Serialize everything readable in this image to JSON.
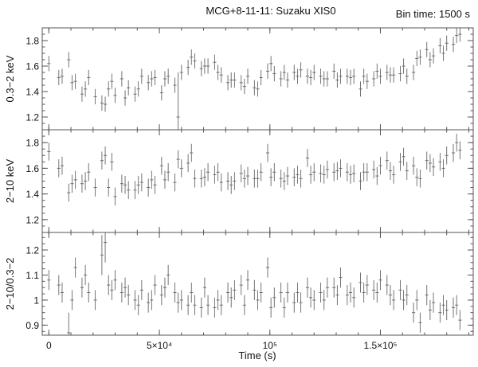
{
  "chart_data": {
    "type": "scatter",
    "title": "MCG+8-11-11: Suzaku XIS0",
    "annotation": "Bin time: 1500 s",
    "xlabel": "Time (s)",
    "xlim": [
      -3000,
      192000
    ],
    "x_ticks": [
      {
        "value": 0,
        "label": "0"
      },
      {
        "value": 50000,
        "label": "5×10⁴"
      },
      {
        "value": 100000,
        "label": "10⁵"
      },
      {
        "value": 150000,
        "label": "1.5×10⁵"
      }
    ],
    "panels": [
      {
        "ylabel": "0.3−2 keV",
        "ylim": [
          1.1,
          1.9
        ],
        "y_ticks": [
          {
            "value": 1.2,
            "label": "1.2"
          },
          {
            "value": 1.4,
            "label": "1.4"
          },
          {
            "value": 1.6,
            "label": "1.6"
          },
          {
            "value": 1.8,
            "label": "1.8"
          }
        ],
        "x": [
          0,
          4500,
          6000,
          9000,
          10500,
          12000,
          15000,
          16500,
          18000,
          21000,
          24000,
          25500,
          27000,
          28500,
          30000,
          33000,
          34500,
          36000,
          39000,
          40500,
          42000,
          45000,
          46500,
          48000,
          51000,
          52500,
          54000,
          57000,
          58500,
          60000,
          63000,
          64500,
          66000,
          69000,
          70500,
          72000,
          75000,
          76500,
          78000,
          81000,
          82500,
          84000,
          87000,
          88500,
          90000,
          93000,
          94500,
          96000,
          99000,
          100500,
          102000,
          105000,
          106500,
          108000,
          111000,
          112500,
          114000,
          117000,
          118500,
          120000,
          123000,
          124500,
          126000,
          129000,
          130500,
          132000,
          135000,
          136500,
          138000,
          141000,
          142500,
          144000,
          147000,
          148500,
          150000,
          153000,
          154500,
          156000,
          159000,
          160500,
          162000,
          165000,
          166500,
          168000,
          171000,
          172500,
          174000,
          177000,
          178500,
          180000,
          183000,
          184500,
          186000
        ],
        "y": [
          1.62,
          1.51,
          1.52,
          1.65,
          1.47,
          1.48,
          1.38,
          1.42,
          1.51,
          1.36,
          1.31,
          1.3,
          1.42,
          1.48,
          1.37,
          1.5,
          1.35,
          1.43,
          1.38,
          1.42,
          1.52,
          1.47,
          1.5,
          1.51,
          1.39,
          1.5,
          1.52,
          1.45,
          1.2,
          1.55,
          1.59,
          1.67,
          1.64,
          1.58,
          1.6,
          1.6,
          1.63,
          1.55,
          1.53,
          1.47,
          1.49,
          1.49,
          1.47,
          1.44,
          1.52,
          1.43,
          1.42,
          1.51,
          1.56,
          1.62,
          1.54,
          1.5,
          1.55,
          1.49,
          1.55,
          1.52,
          1.57,
          1.52,
          1.51,
          1.55,
          1.52,
          1.5,
          1.5,
          1.56,
          1.49,
          1.52,
          1.52,
          1.51,
          1.52,
          1.42,
          1.52,
          1.48,
          1.5,
          1.56,
          1.52,
          1.55,
          1.53,
          1.53,
          1.54,
          1.6,
          1.52,
          1.55,
          1.66,
          1.67,
          1.73,
          1.65,
          1.68,
          1.76,
          1.7,
          1.78,
          1.77,
          1.84,
          1.85
        ],
        "yerr": 0.06
      },
      {
        "ylabel": "2−10 keV",
        "ylim": [
          1.1,
          1.9
        ],
        "y_ticks": [
          {
            "value": 1.2,
            "label": "1.2"
          },
          {
            "value": 1.4,
            "label": "1.4"
          },
          {
            "value": 1.6,
            "label": "1.6"
          },
          {
            "value": 1.8,
            "label": "1.8"
          }
        ],
        "x": [
          0,
          4500,
          6000,
          9000,
          10500,
          12000,
          15000,
          16500,
          18000,
          21000,
          24000,
          25500,
          27000,
          28500,
          30000,
          33000,
          34500,
          36000,
          39000,
          40500,
          42000,
          45000,
          46500,
          48000,
          51000,
          52500,
          54000,
          57000,
          58500,
          60000,
          63000,
          64500,
          66000,
          69000,
          70500,
          72000,
          75000,
          76500,
          78000,
          81000,
          82500,
          84000,
          87000,
          88500,
          90000,
          93000,
          94500,
          96000,
          99000,
          100500,
          102000,
          105000,
          106500,
          108000,
          111000,
          112500,
          114000,
          117000,
          118500,
          120000,
          123000,
          124500,
          126000,
          129000,
          130500,
          132000,
          135000,
          136500,
          138000,
          141000,
          142500,
          144000,
          147000,
          148500,
          150000,
          153000,
          154500,
          156000,
          159000,
          160500,
          162000,
          165000,
          166500,
          168000,
          171000,
          172500,
          174000,
          177000,
          178500,
          180000,
          183000,
          184500,
          186000
        ],
        "y": [
          1.73,
          1.6,
          1.62,
          1.41,
          1.48,
          1.51,
          1.48,
          1.5,
          1.57,
          1.45,
          1.66,
          1.7,
          1.45,
          1.65,
          1.38,
          1.48,
          1.47,
          1.43,
          1.43,
          1.47,
          1.49,
          1.45,
          1.51,
          1.47,
          1.62,
          1.51,
          1.57,
          1.49,
          1.67,
          1.6,
          1.64,
          1.72,
          1.52,
          1.52,
          1.53,
          1.57,
          1.55,
          1.57,
          1.49,
          1.5,
          1.47,
          1.5,
          1.56,
          1.52,
          1.54,
          1.52,
          1.52,
          1.57,
          1.72,
          1.53,
          1.57,
          1.52,
          1.5,
          1.54,
          1.53,
          1.55,
          1.52,
          1.68,
          1.55,
          1.57,
          1.56,
          1.55,
          1.59,
          1.57,
          1.58,
          1.6,
          1.57,
          1.55,
          1.56,
          1.5,
          1.57,
          1.57,
          1.59,
          1.54,
          1.62,
          1.66,
          1.58,
          1.55,
          1.65,
          1.69,
          1.58,
          1.62,
          1.53,
          1.52,
          1.66,
          1.64,
          1.61,
          1.65,
          1.6,
          1.7,
          1.72,
          1.8,
          1.74
        ],
        "yerr": 0.07
      },
      {
        "ylabel": "2−10/0.3−2",
        "ylim": [
          0.86,
          1.27
        ],
        "y_ticks": [
          {
            "value": 0.9,
            "label": "0.9"
          },
          {
            "value": 1.0,
            "label": "1"
          },
          {
            "value": 1.1,
            "label": "1.1"
          },
          {
            "value": 1.2,
            "label": "1.2"
          }
        ],
        "x": [
          0,
          4500,
          6000,
          9000,
          10500,
          12000,
          15000,
          16500,
          18000,
          21000,
          24000,
          25500,
          27000,
          28500,
          30000,
          33000,
          34500,
          36000,
          39000,
          40500,
          42000,
          45000,
          46500,
          48000,
          51000,
          52500,
          54000,
          57000,
          58500,
          60000,
          63000,
          64500,
          66000,
          69000,
          70500,
          72000,
          75000,
          76500,
          78000,
          81000,
          82500,
          84000,
          87000,
          88500,
          90000,
          93000,
          94500,
          96000,
          99000,
          100500,
          102000,
          105000,
          106500,
          108000,
          111000,
          112500,
          114000,
          117000,
          118500,
          120000,
          123000,
          124500,
          126000,
          129000,
          130500,
          132000,
          135000,
          136500,
          138000,
          141000,
          142500,
          144000,
          147000,
          148500,
          150000,
          153000,
          154500,
          156000,
          159000,
          160500,
          162000,
          165000,
          166500,
          168000,
          171000,
          172500,
          174000,
          177000,
          178500,
          180000,
          183000,
          184500,
          186000
        ],
        "y": [
          1.08,
          1.06,
          1.03,
          0.87,
          1.0,
          1.13,
          1.05,
          1.1,
          1.03,
          1.0,
          1.18,
          1.23,
          1.06,
          1.04,
          1.08,
          1.03,
          1.05,
          1.02,
          1.0,
          0.98,
          1.04,
          0.99,
          1.0,
          1.06,
          1.02,
          1.05,
          1.1,
          1.03,
          0.99,
          1.0,
          0.98,
          1.03,
          0.98,
          0.97,
          1.05,
          0.98,
          0.97,
          1.0,
          0.98,
          1.03,
          1.01,
          1.04,
          1.06,
          0.98,
          1.08,
          1.04,
          1.0,
          1.03,
          1.13,
          0.97,
          1.01,
          1.03,
          0.97,
          1.03,
          0.99,
          1.03,
          0.99,
          1.05,
          1.01,
          1.0,
          1.03,
          1.0,
          1.05,
          1.05,
          1.02,
          1.09,
          1.02,
          1.03,
          1.01,
          1.07,
          1.03,
          1.06,
          1.04,
          1.03,
          1.08,
          1.06,
          1.02,
          1.0,
          1.04,
          1.0,
          1.02,
          0.95,
          1.0,
          0.91,
          1.02,
          0.96,
          0.99,
          0.95,
          0.98,
          0.96,
          0.97,
          0.98,
          0.92
        ],
        "yerr": 0.04
      }
    ]
  }
}
